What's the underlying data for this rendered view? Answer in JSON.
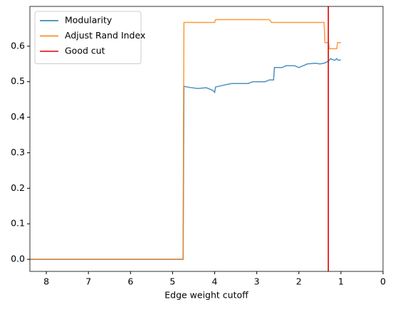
{
  "chart_data": {
    "type": "line",
    "xlabel": "Edge weight cutoff",
    "x": [
      8.39,
      4.75,
      4.73,
      4.6,
      4.4,
      4.2,
      4.05,
      4.0,
      3.98,
      3.8,
      3.6,
      3.2,
      3.1,
      2.8,
      2.7,
      2.65,
      2.6,
      2.58,
      2.4,
      2.3,
      2.1,
      2.0,
      1.9,
      1.8,
      1.6,
      1.5,
      1.4,
      1.38,
      1.35,
      1.3,
      1.28,
      1.25,
      1.15,
      1.1,
      1.08,
      1.05,
      1.0
    ],
    "series": [
      {
        "name": "Modularity",
        "color": "#1f77b4",
        "values": [
          0,
          0,
          0.487,
          0.484,
          0.481,
          0.483,
          0.476,
          0.47,
          0.485,
          0.49,
          0.495,
          0.495,
          0.5,
          0.5,
          0.505,
          0.505,
          0.505,
          0.54,
          0.54,
          0.545,
          0.545,
          0.54,
          0.545,
          0.55,
          0.552,
          0.55,
          0.552,
          0.553,
          0.555,
          0.558,
          0.56,
          0.565,
          0.56,
          0.565,
          0.562,
          0.56,
          0.562
        ]
      },
      {
        "name": "Adjust Rand Index",
        "color": "#ff7f0e",
        "values": [
          0,
          0,
          0.667,
          0.667,
          0.667,
          0.667,
          0.667,
          0.667,
          0.675,
          0.675,
          0.675,
          0.675,
          0.675,
          0.675,
          0.675,
          0.667,
          0.667,
          0.667,
          0.667,
          0.667,
          0.667,
          0.667,
          0.667,
          0.667,
          0.667,
          0.667,
          0.667,
          0.61,
          0.61,
          0.61,
          0.593,
          0.593,
          0.593,
          0.593,
          0.61,
          0.61,
          0.61
        ]
      }
    ],
    "vlines": [
      {
        "name": "Good cut",
        "color": "#e00000",
        "x": 1.3
      }
    ],
    "xlim": [
      8.39,
      0
    ],
    "xticks": [
      8,
      7,
      6,
      5,
      4,
      3,
      2,
      1,
      0
    ],
    "ylim": [
      -0.034,
      0.712
    ],
    "yticks": [
      {
        "value": 0,
        "label": "0.0"
      },
      0.1,
      0.2,
      0.3,
      0.4,
      0.5,
      0.6
    ],
    "legend": "upper left"
  }
}
